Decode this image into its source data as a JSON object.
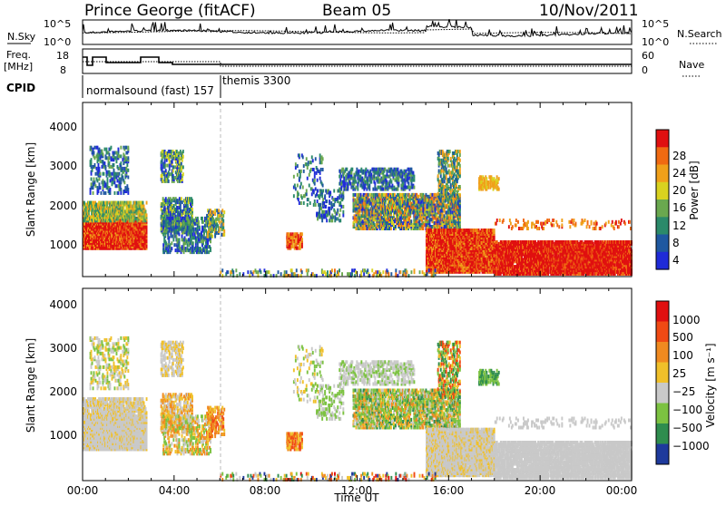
{
  "header": {
    "station": "Prince George (fitACF)",
    "beam": "Beam 05",
    "date": "10/Nov/2011"
  },
  "side_labels": {
    "nsky": "N.Sky",
    "freq_line1": "Freq.",
    "freq_line2": "[MHz]",
    "cpid": "CPID",
    "nsearch": "N.Search",
    "nave": "Nave",
    "nsky_ticks": [
      "10^5",
      "10^0"
    ],
    "nsearch_ticks": [
      "10^5",
      "10^0"
    ],
    "freq_ticks": [
      "18",
      "8"
    ],
    "nave_ticks": [
      "60",
      "0"
    ]
  },
  "cpid_labels": [
    "normalsound (fast) 157",
    "themis 3300"
  ],
  "time_axis": {
    "label": "Time UT",
    "ticks": [
      "00:00",
      "04:00",
      "08:00",
      "12:00",
      "16:00",
      "20:00",
      "00:00"
    ]
  },
  "colors": {
    "power_scale": [
      "#1f2bd8",
      "#1f58a0",
      "#2b8a6a",
      "#6aa84f",
      "#d9d21f",
      "#f0a01a",
      "#f06a12",
      "#e01010"
    ],
    "velocity_scale": [
      "#1e3a9c",
      "#2f8d4e",
      "#7cc241",
      "#c9c9c9",
      "#f0c02a",
      "#f08a20",
      "#f04a14",
      "#e01010"
    ]
  },
  "chart_data": [
    {
      "type": "heatmap",
      "title": "",
      "xlabel": "",
      "ylabel": "Slant Range [km]",
      "x_ticks": [
        "00:00",
        "04:00",
        "08:00",
        "12:00",
        "16:00",
        "20:00",
        "00:00"
      ],
      "y_ticks": [
        "1000",
        "2000",
        "3000",
        "4000"
      ],
      "ylim": [
        180,
        4600
      ],
      "colorbar": {
        "label": "Power [dB]",
        "ticks": [
          "28",
          "24",
          "20",
          "16",
          "12",
          "8",
          "4"
        ],
        "range": [
          0,
          32
        ]
      }
    },
    {
      "type": "heatmap",
      "title": "",
      "xlabel": "Time UT",
      "ylabel": "Slant Range [km]",
      "x_ticks": [
        "00:00",
        "04:00",
        "08:00",
        "12:00",
        "16:00",
        "20:00",
        "00:00"
      ],
      "y_ticks": [
        "1000",
        "2000",
        "3000",
        "4000"
      ],
      "ylim": [
        180,
        4600
      ],
      "colorbar": {
        "label": "Velocity [m s⁻¹]",
        "ticks": [
          "1000",
          "500",
          "100",
          "25",
          "−25",
          "−100",
          "−500",
          "−1000"
        ]
      }
    }
  ]
}
